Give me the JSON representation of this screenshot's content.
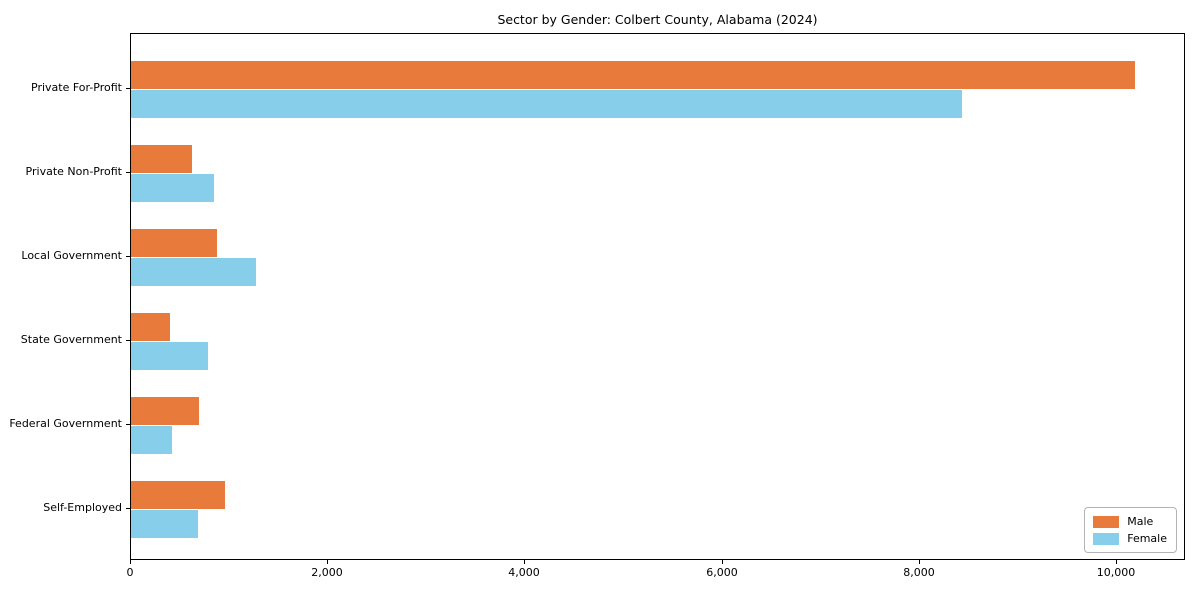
{
  "title": "Sector by Gender: Colbert County, Alabama (2024)",
  "colors": {
    "male": "#e87a3b",
    "female": "#87ceeb",
    "axis": "#000000",
    "background": "#ffffff",
    "legend_border": "#b4b4b4"
  },
  "legend": {
    "items": [
      {
        "label": "Male",
        "color": "#e87a3b"
      },
      {
        "label": "Female",
        "color": "#87ceeb"
      }
    ],
    "position": "lower right"
  },
  "chart_data": {
    "type": "bar",
    "orientation": "horizontal",
    "title": "Sector by Gender: Colbert County, Alabama (2024)",
    "categories": [
      "Private For-Profit",
      "Private Non-Profit",
      "Local Government",
      "State Government",
      "Federal Government",
      "Self-Employed"
    ],
    "series": [
      {
        "name": "Male",
        "color": "#e87a3b",
        "values": [
          10180,
          620,
          870,
          400,
          690,
          950
        ]
      },
      {
        "name": "Female",
        "color": "#87ceeb",
        "values": [
          8430,
          840,
          1270,
          780,
          420,
          680
        ]
      }
    ],
    "xlabel": "",
    "ylabel": "",
    "xlim": [
      0,
      10700
    ],
    "xticks": [
      0,
      2000,
      4000,
      6000,
      8000,
      10000
    ],
    "xtick_labels": [
      "0",
      "2,000",
      "4,000",
      "6,000",
      "8,000",
      "10,000"
    ],
    "grid": false,
    "legend_position": "lower right"
  }
}
